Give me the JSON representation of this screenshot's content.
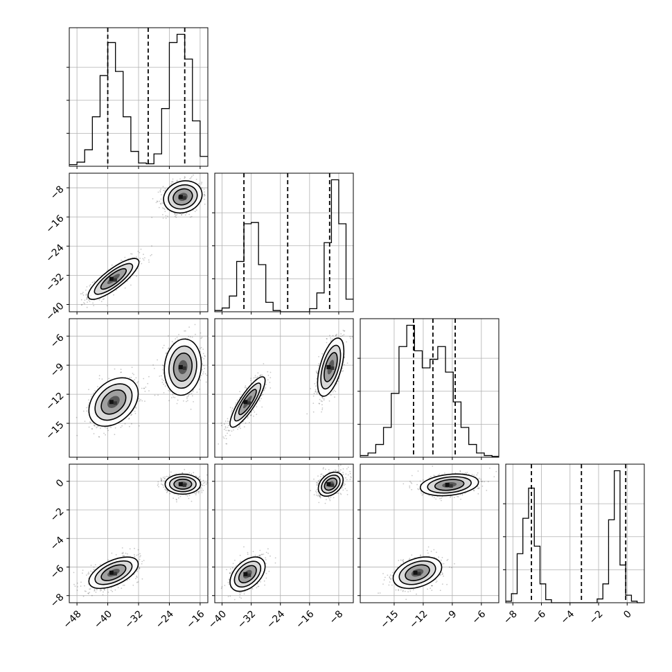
{
  "chart_data": {
    "type": "corner",
    "grid": true,
    "parameters": [
      {
        "range": [
          -50,
          -14
        ],
        "ticks": [
          -48,
          -40,
          -32,
          -24,
          -16
        ],
        "tick_labels": [
          "−48",
          "−40",
          "−32",
          "−24",
          "−16"
        ],
        "quantiles": [
          -40,
          -29.5,
          -20
        ],
        "modes": [
          -38,
          -20
        ]
      },
      {
        "range": [
          -42,
          -4
        ],
        "ticks": [
          -40,
          -32,
          -24,
          -16,
          -8
        ],
        "tick_labels": [
          "−40",
          "−32",
          "−24",
          "−16",
          "−8"
        ],
        "quantiles": [
          -34,
          -22,
          -10.5
        ],
        "modes": [
          -33,
          -10
        ]
      },
      {
        "range": [
          -18.5,
          -4.2
        ],
        "ticks": [
          -15,
          -12,
          -9,
          -6
        ],
        "tick_labels": [
          "−15",
          "−12",
          "−9",
          "−6"
        ],
        "quantiles": [
          -13,
          -11,
          -8.7
        ],
        "modes": [
          -12.5,
          -9
        ]
      },
      {
        "range": [
          -8.5,
          1.2
        ],
        "ticks": [
          -8,
          -6,
          -4,
          -2,
          0
        ],
        "tick_labels": [
          "−8",
          "−6",
          "−4",
          "−2",
          "0"
        ],
        "quantiles": [
          -6.7,
          -3.2,
          -0.1
        ],
        "modes": [
          -6.5,
          0
        ]
      }
    ],
    "histograms": [
      {
        "param": 0,
        "bins": [
          -50,
          -48,
          -46,
          -44,
          -42,
          -40,
          -38,
          -36,
          -34,
          -32,
          -30,
          -28,
          -26,
          -24,
          -22,
          -20,
          -18,
          -16,
          -14
        ],
        "counts": [
          2,
          5,
          20,
          60,
          110,
          150,
          115,
          60,
          18,
          4,
          3,
          15,
          70,
          150,
          160,
          130,
          55,
          12
        ]
      },
      {
        "param": 1,
        "bins": [
          -42,
          -40,
          -38,
          -36,
          -34,
          -32,
          -30,
          -28,
          -26,
          -24,
          -22,
          -20,
          -18,
          -16,
          -14,
          -12,
          -10,
          -8,
          -6,
          -4
        ],
        "counts": [
          2,
          6,
          25,
          80,
          140,
          142,
          75,
          15,
          2,
          0,
          0,
          0,
          0,
          5,
          30,
          110,
          210,
          140,
          20
        ]
      },
      {
        "param": 2,
        "bins": [
          -18.5,
          -17.7,
          -16.9,
          -16.1,
          -15.3,
          -14.5,
          -13.7,
          -12.9,
          -12.1,
          -11.3,
          -10.5,
          -9.7,
          -8.9,
          -8.1,
          -7.3,
          -6.5,
          -5.7,
          -4.9,
          -4.2
        ],
        "counts": [
          2,
          5,
          15,
          35,
          75,
          130,
          155,
          125,
          105,
          115,
          130,
          100,
          65,
          35,
          15,
          5,
          2,
          1
        ]
      },
      {
        "param": 3,
        "bins": [
          -8.5,
          -8.1,
          -7.7,
          -7.3,
          -6.9,
          -6.5,
          -6.1,
          -5.7,
          -5.3,
          -4.9,
          -2.1,
          -1.7,
          -1.3,
          -0.9,
          -0.5,
          -0.1,
          0.3,
          0.7,
          1.1
        ],
        "counts": [
          2,
          12,
          65,
          112,
          152,
          75,
          25,
          4,
          0,
          0,
          5,
          25,
          110,
          175,
          50,
          10,
          2,
          0
        ]
      }
    ],
    "blobs": [
      {
        "x": 0,
        "y": 1,
        "cx": -38.5,
        "cy": -33,
        "sx": 3.3,
        "sy": 2.8,
        "rho": 0.82,
        "n": 700
      },
      {
        "x": 0,
        "y": 1,
        "cx": -20.5,
        "cy": -10.5,
        "sx": 2.5,
        "sy": 2.2,
        "rho": 0.15,
        "n": 700
      },
      {
        "x": 0,
        "y": 2,
        "cx": -38.5,
        "cy": -12.8,
        "sx": 3.2,
        "sy": 1.25,
        "rho": 0.35,
        "n": 700
      },
      {
        "x": 0,
        "y": 2,
        "cx": -20.5,
        "cy": -9.2,
        "sx": 2.4,
        "sy": 1.45,
        "rho": 0.1,
        "n": 700
      },
      {
        "x": 0,
        "y": 3,
        "cx": -38.5,
        "cy": -6.4,
        "sx": 3.2,
        "sy": 0.55,
        "rho": 0.55,
        "n": 700
      },
      {
        "x": 0,
        "y": 3,
        "cx": -20.5,
        "cy": -0.2,
        "sx": 2.3,
        "sy": 0.35,
        "rho": 0.0,
        "n": 700
      },
      {
        "x": 1,
        "y": 2,
        "cx": -33,
        "cy": -12.8,
        "sx": 2.4,
        "sy": 1.3,
        "rho": 0.85,
        "n": 700
      },
      {
        "x": 1,
        "y": 2,
        "cx": -10.2,
        "cy": -9.2,
        "sx": 1.8,
        "sy": 1.5,
        "rho": 0.55,
        "n": 700
      },
      {
        "x": 1,
        "y": 3,
        "cx": -33,
        "cy": -6.5,
        "sx": 2.4,
        "sy": 0.6,
        "rho": 0.45,
        "n": 700
      },
      {
        "x": 1,
        "y": 3,
        "cx": -10.2,
        "cy": -0.2,
        "sx": 1.7,
        "sy": 0.42,
        "rho": 0.35,
        "n": 700
      },
      {
        "x": 2,
        "y": 3,
        "cx": -12.6,
        "cy": -6.4,
        "sx": 1.25,
        "sy": 0.55,
        "rho": 0.35,
        "n": 700
      },
      {
        "x": 2,
        "y": 3,
        "cx": -9.3,
        "cy": -0.25,
        "sx": 1.5,
        "sy": 0.38,
        "rho": 0.25,
        "n": 700
      }
    ]
  }
}
